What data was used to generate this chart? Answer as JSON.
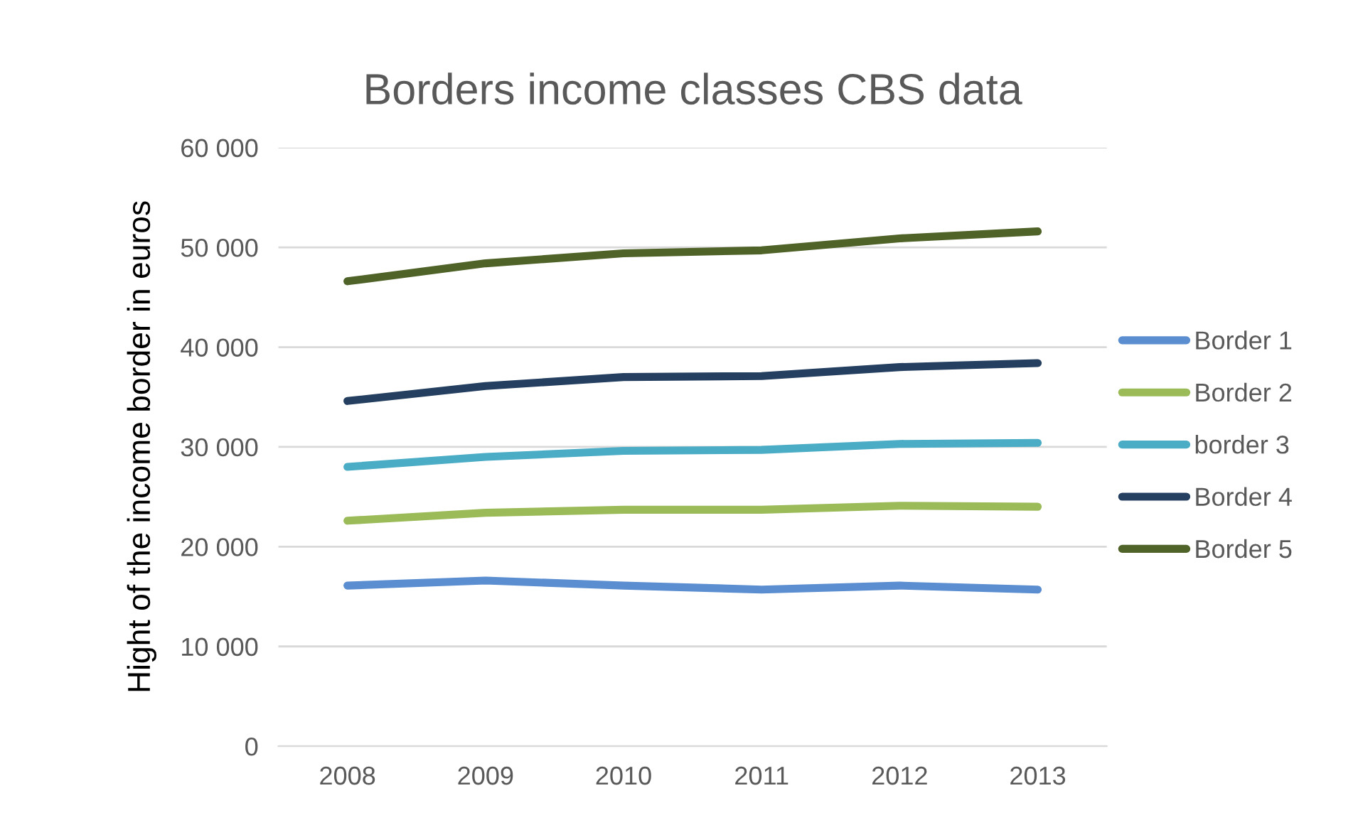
{
  "chart_data": {
    "type": "line",
    "title": "Borders income classes CBS data",
    "ylabel": "Hight of the income border in euros",
    "categories": [
      "2008",
      "2009",
      "2010",
      "2011",
      "2012",
      "2013"
    ],
    "series": [
      {
        "name": "Border 1",
        "color": "#5b8ed0",
        "values": [
          16100,
          16600,
          16100,
          15700,
          16100,
          15700
        ]
      },
      {
        "name": "Border 2",
        "color": "#9bbb59",
        "values": [
          22600,
          23400,
          23700,
          23700,
          24100,
          24000
        ]
      },
      {
        "name": "border 3",
        "color": "#4bacc6",
        "values": [
          28000,
          29000,
          29600,
          29700,
          30300,
          30400
        ]
      },
      {
        "name": "Border 4",
        "color": "#243f60",
        "values": [
          34600,
          36100,
          37000,
          37100,
          38000,
          38400
        ]
      },
      {
        "name": "Border 5",
        "color": "#4f6228",
        "values": [
          46600,
          48400,
          49400,
          49700,
          50900,
          51600
        ]
      }
    ],
    "ylim": [
      0,
      60000
    ],
    "yticks": [
      0,
      {
        "value": 10000,
        "label": "10 000"
      },
      {
        "value": 20000,
        "label": "20 000"
      },
      {
        "value": 30000,
        "label": "30 000"
      },
      {
        "value": 40000,
        "label": "40 000"
      },
      {
        "value": 50000,
        "label": "50 000"
      },
      {
        "value": 60000,
        "label": "60 000"
      }
    ],
    "grid": "y",
    "legend": "right",
    "marker": "none",
    "line_style": "solid"
  }
}
